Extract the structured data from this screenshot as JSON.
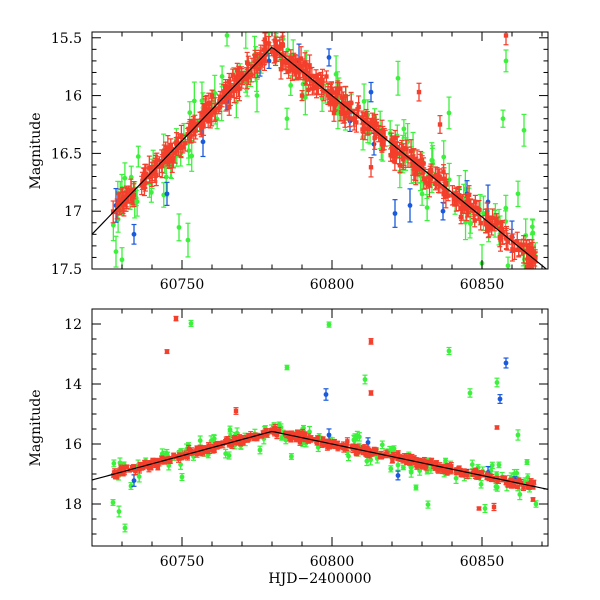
{
  "colors": {
    "green": "#3cf13c",
    "red": "#f43f2c",
    "blue": "#1a5adc",
    "model": "#000000"
  },
  "chart_data": [
    {
      "type": "scatter",
      "title": "",
      "ylabel": "Magnitude",
      "xlabel": "",
      "xlim": [
        60720,
        60872
      ],
      "ylim": [
        17.5,
        15.45
      ],
      "y_inverted": true,
      "xticks": {
        "major": [
          60750,
          60800,
          60850
        ],
        "minor_step": 10
      },
      "yticks": {
        "major": [
          15.5,
          16,
          16.5,
          17,
          17.5
        ],
        "labels": [
          "15.5",
          "16",
          "16.5",
          "17",
          "17.5"
        ],
        "minor_step": 0.1
      },
      "xtick_labels": [
        "60750",
        "60800",
        "60850"
      ],
      "grid": false,
      "legend": "none",
      "model_curve": {
        "color": "black",
        "t_peak": 60780,
        "m_peak": 15.58,
        "rise_slope": 0.027,
        "decline_slope": 0.021,
        "x_range": [
          60720,
          60872
        ]
      },
      "series": [
        {
          "color": "red",
          "marker": "square",
          "n": 450,
          "x_range": [
            60727,
            60868
          ],
          "scatter": 0.05,
          "err": 0.07,
          "outliers": [
            [
              60813,
              16.62
            ],
            [
              60829,
              15.97
            ],
            [
              60836,
              16.25
            ],
            [
              60843,
              17.05
            ],
            [
              60858,
              15.48
            ],
            [
              60865,
              17.48
            ],
            [
              60790,
              16.0
            ],
            [
              60760,
              16.0
            ]
          ]
        },
        {
          "color": "green",
          "marker": "circle",
          "n": 150,
          "x_range": [
            60727,
            60868
          ],
          "scatter": 0.12,
          "err": 0.11,
          "outliers": [
            [
              60728,
              17.35
            ],
            [
              60730,
              17.42
            ],
            [
              60749,
              17.14
            ],
            [
              60752,
              17.25
            ],
            [
              60765,
              15.48
            ],
            [
              60775,
              16.0
            ],
            [
              60785,
              16.2
            ],
            [
              60822,
              15.85
            ],
            [
              60839,
              16.15
            ],
            [
              60846,
              17.1
            ],
            [
              60857,
              16.2
            ],
            [
              60858,
              15.7
            ],
            [
              60862,
              16.85
            ],
            [
              60864,
              16.3
            ],
            [
              60850,
              17.45
            ]
          ]
        },
        {
          "color": "blue",
          "marker": "circle",
          "n": 0,
          "x_range": [
            60727,
            60868
          ],
          "scatter": 0.05,
          "err": 0.1,
          "points": [
            [
              60728,
              16.95
            ],
            [
              60734,
              17.2
            ],
            [
              60745,
              16.85
            ],
            [
              60757,
              16.4
            ],
            [
              60765,
              16.05
            ],
            [
              60776,
              15.72
            ],
            [
              60779,
              15.7
            ],
            [
              60789,
              15.7
            ],
            [
              60799,
              15.67
            ],
            [
              60806,
              16.22
            ],
            [
              60813,
              15.97
            ],
            [
              60814,
              16.42
            ],
            [
              60821,
              17.02
            ],
            [
              60826,
              16.95
            ],
            [
              60837,
              17.0
            ],
            [
              60845,
              16.85
            ],
            [
              60852,
              16.92
            ],
            [
              60860,
              17.22
            ]
          ]
        }
      ]
    },
    {
      "type": "scatter",
      "title": "",
      "ylabel": "Magnitude",
      "xlabel": "HJD−2400000",
      "xlim": [
        60720,
        60872
      ],
      "ylim": [
        19.4,
        11.5
      ],
      "y_inverted": true,
      "xticks": {
        "major": [
          60750,
          60800,
          60850
        ],
        "minor_step": 10
      },
      "yticks": {
        "major": [
          12,
          14,
          16,
          18
        ],
        "labels": [
          "12",
          "14",
          "16",
          "18"
        ],
        "minor_step": 0.5
      },
      "xtick_labels": [
        "60750",
        "60800",
        "60850"
      ],
      "grid": false,
      "legend": "none",
      "model_curve": {
        "color": "black",
        "t_peak": 60780,
        "m_peak": 15.58,
        "rise_slope": 0.027,
        "decline_slope": 0.021,
        "x_range": [
          60720,
          60872
        ]
      },
      "series": [
        {
          "color": "red",
          "marker": "square",
          "n": 450,
          "x_range": [
            60727,
            60868
          ],
          "scatter": 0.06,
          "err": 0.08,
          "outliers": [
            [
              60745,
              12.92
            ],
            [
              60748,
              11.82
            ],
            [
              60768,
              14.9
            ],
            [
              60813,
              12.58
            ],
            [
              60813,
              14.3
            ],
            [
              60830,
              16.65
            ],
            [
              60849,
              18.15
            ],
            [
              60855,
              15.45
            ],
            [
              60854,
              18.1
            ],
            [
              60867,
              17.85
            ]
          ]
        },
        {
          "color": "green",
          "marker": "circle",
          "n": 150,
          "x_range": [
            60727,
            60868
          ],
          "scatter": 0.18,
          "err": 0.12,
          "outliers": [
            [
              60727,
              17.95
            ],
            [
              60729,
              18.25
            ],
            [
              60731,
              18.8
            ],
            [
              60733,
              17.4
            ],
            [
              60750,
              17.1
            ],
            [
              60753,
              11.98
            ],
            [
              60766,
              15.52
            ],
            [
              60776,
              16.2
            ],
            [
              60785,
              13.45
            ],
            [
              60799,
              12.02
            ],
            [
              60811,
              13.85
            ],
            [
              60822,
              16.7
            ],
            [
              60828,
              17.45
            ],
            [
              60832,
              18.02
            ],
            [
              60839,
              12.9
            ],
            [
              60846,
              14.3
            ],
            [
              60851,
              18.15
            ],
            [
              60855,
              13.95
            ],
            [
              60862,
              15.7
            ],
            [
              60865,
              16.6
            ],
            [
              60868,
              18.0
            ]
          ]
        },
        {
          "color": "blue",
          "marker": "circle",
          "n": 0,
          "x_range": [
            60727,
            60868
          ],
          "scatter": 0.05,
          "err": 0.15,
          "points": [
            [
              60734,
              17.22
            ],
            [
              60798,
              14.35
            ],
            [
              60799,
              15.7
            ],
            [
              60812,
              15.95
            ],
            [
              60822,
              17.05
            ],
            [
              60845,
              17.0
            ],
            [
              60852,
              16.95
            ],
            [
              60856,
              14.5
            ],
            [
              60858,
              13.3
            ],
            [
              60861,
              17.2
            ]
          ]
        }
      ]
    }
  ]
}
